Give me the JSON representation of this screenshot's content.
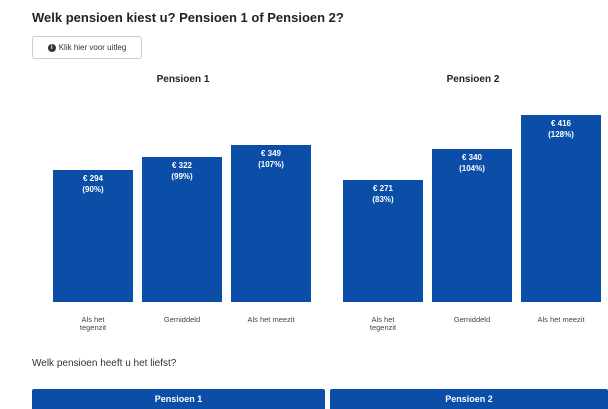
{
  "title": "Welk pensioen kiest u? Pensioen 1 of Pensioen 2?",
  "info_button": "Klik hier voor uitleg",
  "charts": [
    {
      "type": "bar",
      "title": "Pensioen 1",
      "categories": [
        "Als het tegenzit",
        "Gemiddeld",
        "Als het meezit"
      ],
      "values": [
        294,
        322,
        349
      ],
      "value_labels": [
        "€ 294",
        "€ 322",
        "€ 349"
      ],
      "percent_labels": [
        "(90%)",
        "(99%)",
        "(107%)"
      ],
      "color": "#0b4ea8",
      "ylim": [
        0,
        450
      ]
    },
    {
      "type": "bar",
      "title": "Pensioen 2",
      "categories": [
        "Als het tegenzit",
        "Gemiddeld",
        "Als het meezit"
      ],
      "values": [
        271,
        340,
        416
      ],
      "value_labels": [
        "€ 271",
        "€ 340",
        "€ 416"
      ],
      "percent_labels": [
        "(83%)",
        "(104%)",
        "(128%)"
      ],
      "color": "#0b4ea8",
      "ylim": [
        0,
        450
      ]
    }
  ],
  "question": "Welk pensioen heeft u het liefst?",
  "choices": [
    "Pensioen 1",
    "Pensioen 2"
  ]
}
